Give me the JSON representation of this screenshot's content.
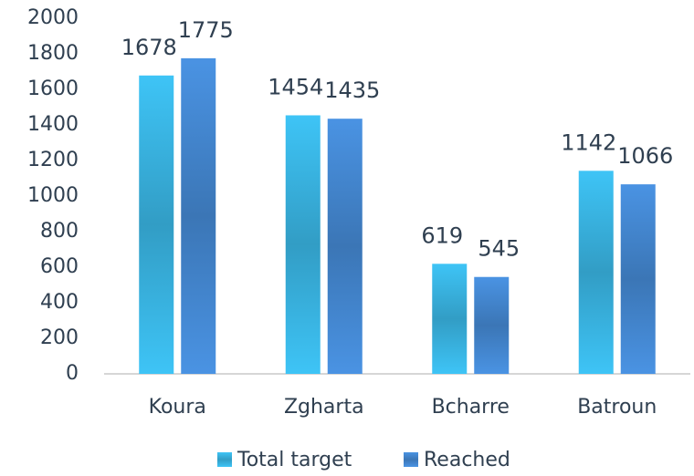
{
  "chart_data": {
    "type": "bar",
    "categories": [
      "Koura",
      "Zgharta",
      "Bcharre",
      "Batroun"
    ],
    "series": [
      {
        "name": "Total target",
        "color": "#3ec4f6",
        "values": [
          1678,
          1454,
          619,
          1142
        ]
      },
      {
        "name": "Reached",
        "color": "#4a93e3",
        "values": [
          1775,
          1435,
          545,
          1066
        ]
      }
    ],
    "ylim": [
      0,
      2000
    ],
    "yticks": [
      0,
      200,
      400,
      600,
      800,
      1000,
      1200,
      1400,
      1600,
      1800,
      2000
    ],
    "grid": false,
    "legend": "bottom"
  }
}
